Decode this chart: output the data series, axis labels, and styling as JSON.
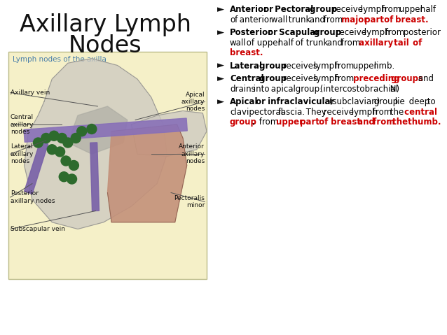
{
  "bg_color": "#ffffff",
  "title_line1": "Axillary Lymph",
  "title_line2": "Nodes",
  "title_fontsize": 24,
  "diagram_box_color": "#f5f0c8",
  "diagram_label": "Lymph nodes of the axilla",
  "diagram_label_color": "#4a7faa",
  "bullets": [
    [
      {
        "text": "Anterior or Pectoral group",
        "bold": true,
        "color": "#000000"
      },
      {
        "text": " receive lymph from upper half of anterior wall trunk and from ",
        "bold": false,
        "color": "#000000"
      },
      {
        "text": "major part of breast.",
        "bold": true,
        "color": "#cc0000"
      }
    ],
    [
      {
        "text": "Posterior or Scapular group",
        "bold": true,
        "color": "#000000"
      },
      {
        "text": " receive lymph from posterior wall of upper half of trunk and from ",
        "bold": false,
        "color": "#000000"
      },
      {
        "text": "axillary tail of breast.",
        "bold": true,
        "color": "#cc0000"
      }
    ],
    [
      {
        "text": "Lateral group",
        "bold": true,
        "color": "#000000"
      },
      {
        "text": "  receives lymph from upper limb.",
        "bold": false,
        "color": "#000000"
      }
    ],
    [
      {
        "text": "Central group",
        "bold": true,
        "color": "#000000"
      },
      {
        "text": " receives lymph from ",
        "bold": false,
        "color": "#000000"
      },
      {
        "text": "preceding groups",
        "bold": true,
        "color": "#cc0000"
      },
      {
        "text": " and drains into apical group. (intercostobrachial N)",
        "bold": false,
        "color": "#000000"
      }
    ],
    [
      {
        "text": "Apical or infraclavicular",
        "bold": true,
        "color": "#000000"
      },
      {
        "text": " (subclavian) group lie deep to clavipectoral fascia. They receive lymph from the ",
        "bold": false,
        "color": "#000000"
      },
      {
        "text": "central group",
        "bold": true,
        "color": "#cc0000"
      },
      {
        "text": ", from ",
        "bold": false,
        "color": "#000000"
      },
      {
        "text": "upper part of breast and from the thumb.",
        "bold": true,
        "color": "#cc0000"
      }
    ]
  ]
}
